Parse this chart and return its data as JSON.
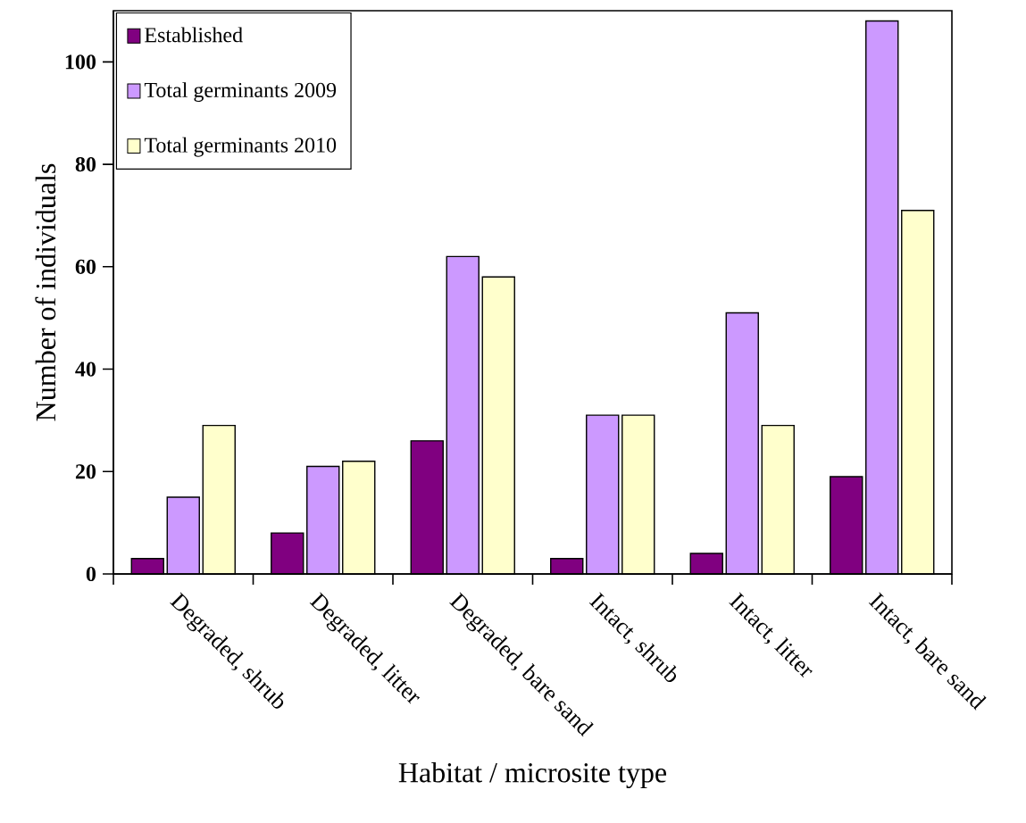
{
  "chart_data": {
    "type": "bar",
    "xlabel": "Habitat / microsite type",
    "ylabel": "Number of individuals",
    "categories": [
      "Degraded, shrub",
      "Degraded, litter",
      "Degraded, bare sand",
      "Intact, shrub",
      "Intact, litter",
      "Intact, bare sand"
    ],
    "series": [
      {
        "name": "Established",
        "color": "#800080",
        "values": [
          3,
          8,
          26,
          3,
          4,
          19
        ]
      },
      {
        "name": "Total germinants 2009",
        "color": "#cc99ff",
        "values": [
          15,
          21,
          62,
          31,
          51,
          108
        ]
      },
      {
        "name": "Total germinants 2010",
        "color": "#ffffcc",
        "values": [
          29,
          22,
          58,
          31,
          29,
          71
        ]
      }
    ],
    "ylim": [
      0,
      110
    ],
    "yticks": [
      0,
      20,
      40,
      60,
      80,
      100
    ],
    "legend": "top left"
  }
}
